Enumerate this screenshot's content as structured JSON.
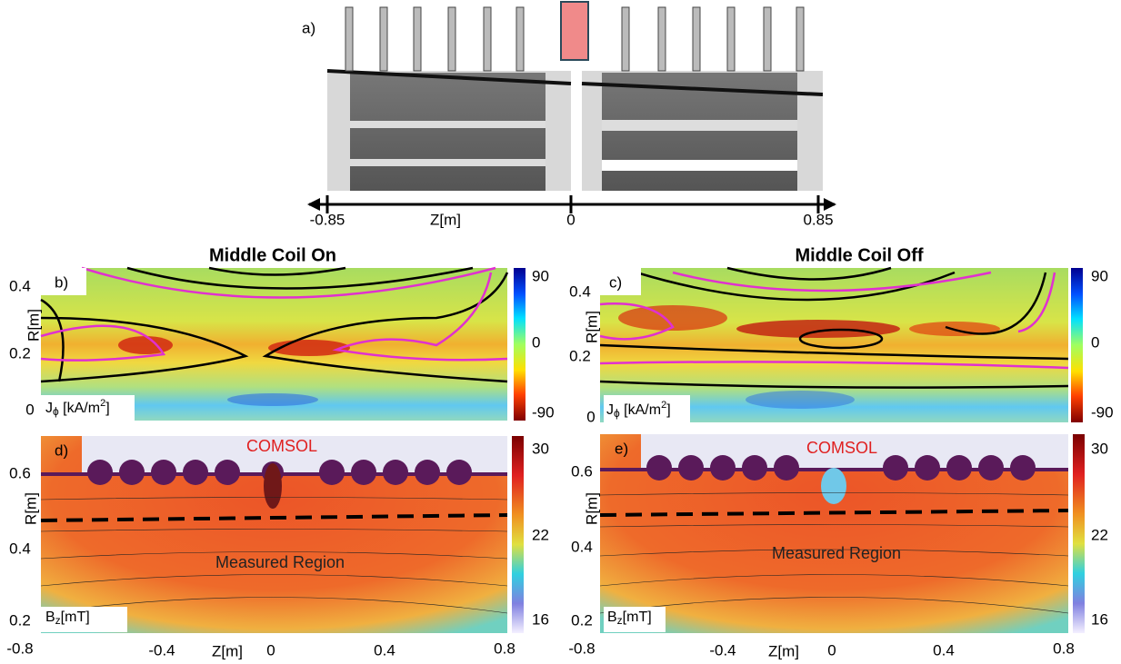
{
  "panel_a": {
    "label": "a)",
    "axis_ticks": [
      "-0.85",
      "0",
      "0.85"
    ],
    "axis_label": "Z[m]"
  },
  "panel_b": {
    "label": "b)",
    "title": "Middle Coil On",
    "y_ticks": [
      "0.4",
      "0.2",
      "0"
    ],
    "y_label": "R[m]",
    "colorbar_label": [
      "J",
      "ϕ",
      " [kA/m",
      "2",
      "]"
    ],
    "colorbar_ticks": [
      "90",
      "0",
      "-90"
    ]
  },
  "panel_c": {
    "label": "c)",
    "title": "Middle Coil Off",
    "y_ticks": [
      "0.4",
      "0.2",
      "0"
    ],
    "y_label": "R[m]",
    "colorbar_label": [
      "J",
      "ϕ",
      " [kA/m",
      "2",
      "]"
    ],
    "colorbar_ticks": [
      "90",
      "0",
      "-90"
    ]
  },
  "panel_d": {
    "label": "d)",
    "annotation": "COMSOL",
    "region_label": "Measured Region",
    "y_ticks": [
      "0.6",
      "0.4",
      "0.2"
    ],
    "y_label": "R[m]",
    "x_ticks": [
      "-0.8",
      "-0.4",
      "0",
      "0.4",
      "0.8"
    ],
    "x_label": "Z[m]",
    "colorbar_label": [
      "B",
      "z",
      "[mT]"
    ],
    "colorbar_ticks": [
      "30",
      "22",
      "16"
    ]
  },
  "panel_e": {
    "label": "e)",
    "annotation": "COMSOL",
    "region_label": "Measured Region",
    "y_ticks": [
      "0.6",
      "0.4",
      "0.2"
    ],
    "y_label": "R[m]",
    "x_ticks": [
      "-0.8",
      "-0.4",
      "0",
      "0.4",
      "0.8"
    ],
    "x_label": "Z[m]",
    "colorbar_label": [
      "B",
      "z",
      "[mT]"
    ],
    "colorbar_ticks": [
      "30",
      "22",
      "16"
    ]
  }
}
